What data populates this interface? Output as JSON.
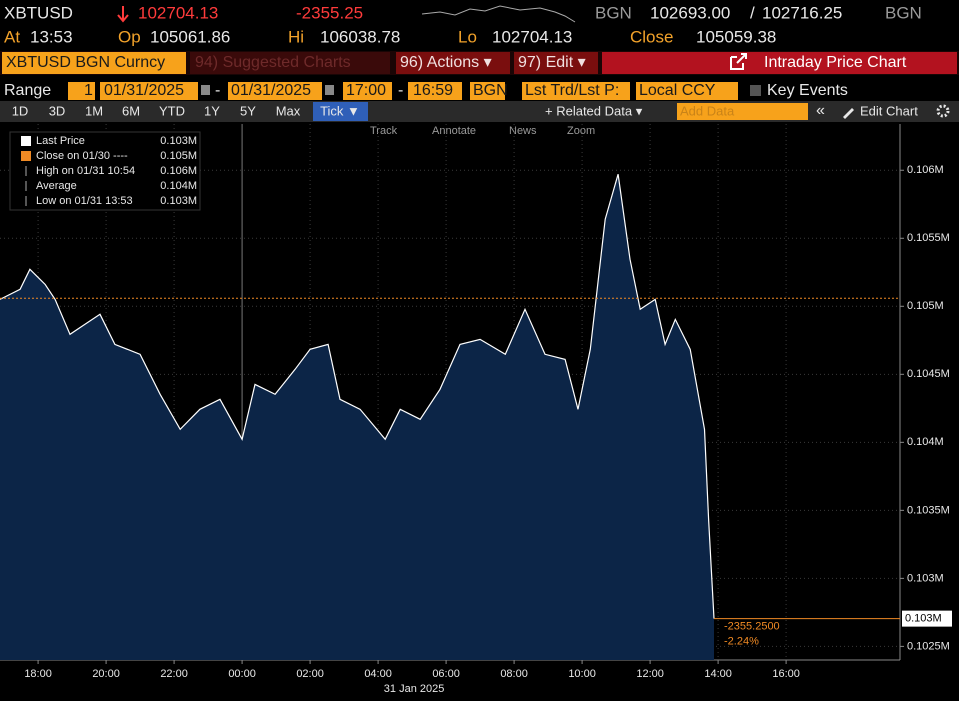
{
  "header": {
    "ticker": "XBTUSD",
    "last": "102704.13",
    "change": "-2355.25",
    "source": "BGN",
    "bid": "102693.00",
    "separator": "/",
    "ask": "102716.25",
    "source2": "BGN",
    "stats": [
      {
        "label": "At",
        "value": "13:53"
      },
      {
        "label": "Op",
        "value": "105061.86"
      },
      {
        "label": "Hi",
        "value": "106038.78"
      },
      {
        "label": "Lo",
        "value": "102704.13"
      },
      {
        "label": "Close",
        "value": "105059.38"
      }
    ]
  },
  "toolbar": {
    "security": "XBTUSD BGN Curncy",
    "suggested": "94) Suggested Charts",
    "actions": "96) Actions ▾",
    "edit": "97) Edit ▾",
    "title": "Intraday Price Chart"
  },
  "range_bar": {
    "label": "Range",
    "count": "1",
    "start_date": "01/31/2025",
    "dash": "-",
    "end_date": "01/31/2025",
    "start_time": "17:00",
    "dash2": "-",
    "end_time": "16:59",
    "source": "BGN",
    "field": "Lst Trd/Lst P:",
    "currency": "Local CCY",
    "key_events": "Key Events"
  },
  "periods": [
    "1D",
    "3D",
    "1M",
    "6M",
    "YTD",
    "1Y",
    "5Y",
    "Max",
    "Tick ▼"
  ],
  "chart_menu": {
    "related": "+ Related Data ▾",
    "add_data": "Add Data",
    "collapse": "«",
    "edit_chart": "Edit Chart"
  },
  "chart_tools": [
    "Track",
    "Annotate",
    "News",
    "Zoom"
  ],
  "chart_data": {
    "type": "area",
    "legend": [
      {
        "label": "Last Price",
        "value": "0.103M"
      },
      {
        "label": "Close on 01/30 ----",
        "value": "0.105M"
      },
      {
        "label": "High on 01/31 10:54",
        "value": "0.106M"
      },
      {
        "label": "Average",
        "value": "0.104M"
      },
      {
        "label": "Low on 01/31 13:53",
        "value": "0.103M"
      }
    ],
    "x": [
      -7.12,
      -6.53,
      -6.24,
      -5.79,
      -5.5,
      -5.06,
      -4.62,
      -4.18,
      -3.74,
      -3,
      -2.41,
      -1.82,
      -1.24,
      -0.65,
      0,
      0.38,
      0.97,
      1.56,
      2,
      2.53,
      2.88,
      3.47,
      4.21,
      4.65,
      5.24,
      5.82,
      6.41,
      7,
      7.74,
      8.32,
      8.91,
      9.5,
      9.88,
      10.24,
      10.68,
      11.06,
      11.41,
      11.71,
      12.15,
      12.44,
      12.74,
      13.18,
      13.6,
      13.72,
      13.8,
      13.88
    ],
    "series": [
      {
        "color": "#ffffff",
        "fill": "#0c2547",
        "values": [
          105051,
          105125,
          105272,
          105160,
          105051,
          104794,
          104868,
          104941,
          104720,
          104647,
          104353,
          104096,
          104243,
          104316,
          104022,
          104426,
          104353,
          104537,
          104684,
          104720,
          104316,
          104243,
          104022,
          104243,
          104169,
          104390,
          104720,
          104757,
          104647,
          104978,
          104647,
          104610,
          104243,
          104684,
          105640,
          105971,
          105346,
          104978,
          105051,
          104720,
          104904,
          104684,
          104096,
          103434,
          103066,
          102704.13
        ]
      }
    ],
    "close": 105059.38,
    "close_color": "#f08a24",
    "xlim": [
      -7.12,
      19.35
    ],
    "ylim": [
      102400,
      106340
    ],
    "xticks": [
      {
        "value": -6,
        "label": "18:00"
      },
      {
        "value": -4,
        "label": "20:00"
      },
      {
        "value": -2,
        "label": "22:00"
      },
      {
        "value": 0,
        "label": "00:00"
      },
      {
        "value": 2,
        "label": "02:00"
      },
      {
        "value": 4,
        "label": "04:00"
      },
      {
        "value": 6,
        "label": "06:00"
      },
      {
        "value": 8,
        "label": "08:00"
      },
      {
        "value": 10,
        "label": "10:00"
      },
      {
        "value": 12,
        "label": "12:00"
      },
      {
        "value": 14,
        "label": "14:00"
      },
      {
        "value": 16,
        "label": "16:00"
      }
    ],
    "date_label": "31 Jan 2025",
    "yticks": [
      {
        "value": 102500,
        "label": "0.1025M"
      },
      {
        "value": 103000,
        "label": "0.103M"
      },
      {
        "value": 103500,
        "label": "0.1035M"
      },
      {
        "value": 104000,
        "label": "0.104M"
      },
      {
        "value": 104500,
        "label": "0.1045M"
      },
      {
        "value": 105000,
        "label": "0.105M"
      },
      {
        "value": 105500,
        "label": "0.1055M"
      },
      {
        "value": 106000,
        "label": "0.106M"
      }
    ],
    "grid": true,
    "last_label": "0.103M",
    "change_labels": [
      "-2355.2500",
      "-2.24%"
    ]
  }
}
